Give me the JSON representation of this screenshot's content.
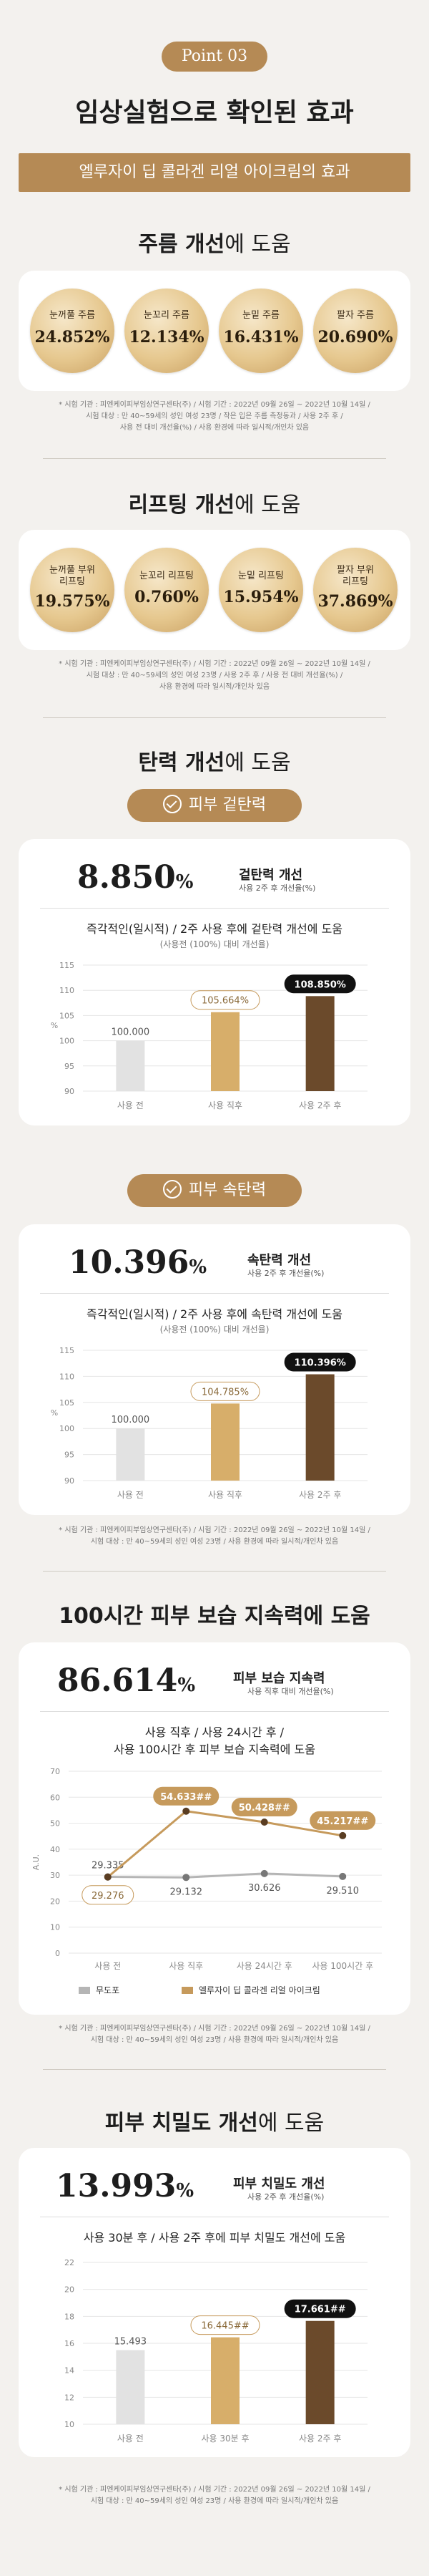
{
  "hero": {
    "point": "Point 03",
    "title": "임상실험으로 확인된 효과",
    "banner": "엘루자이 딥 콜라겐 리얼 아이크림의 효과"
  },
  "wrinkle": {
    "title_bold": "주름 개선",
    "title_rest": "에 도움",
    "items": [
      {
        "label1": "눈꺼풀 주름",
        "label2": "",
        "value": "24.852%"
      },
      {
        "label1": "눈꼬리 주름",
        "label2": "",
        "value": "12.134%"
      },
      {
        "label1": "눈밑 주름",
        "label2": "",
        "value": "16.431%"
      },
      {
        "label1": "팔자 주름",
        "label2": "",
        "value": "20.690%"
      }
    ],
    "note": [
      "* 시험 기관 : 피엔케이피부임상연구센타(주) / 시험 기간 : 2022년 09월 26일 ~ 2022년 10월 14일 /",
      "시험 대상 : 만 40~59세의 성인 여성 23명 / 작은 입은 주름 측정동과 / 사용 2주 후 /",
      "사용 전 대비 개선율(%) / 사용 환경에 따라 일시적/개인차 있음"
    ]
  },
  "lifting": {
    "title_bold": "리프팅 개선",
    "title_rest": "에 도움",
    "items": [
      {
        "label1": "눈꺼풀 부위",
        "label2": "리프팅",
        "value": "19.575%"
      },
      {
        "label1": "눈꼬리 리프팅",
        "label2": "",
        "value": "0.760%"
      },
      {
        "label1": "눈밑 리프팅",
        "label2": "",
        "value": "15.954%"
      },
      {
        "label1": "팔자 부위",
        "label2": "리프팅",
        "value": "37.869%"
      }
    ],
    "note": [
      "* 시험 기관 : 피엔케이피부임상연구센타(주) / 시험 기간 : 2022년 09월 26일 ~ 2022년 10월 14일 /",
      "시험 대상 : 만 40~59세의 성인 여성 23명 / 사용 2주 후 / 사용 전 대비 개선율(%) /",
      "사용 환경에 따라 일시적/개인차 있음"
    ]
  },
  "elasticity": {
    "title_bold": "탄력 개선",
    "title_rest": "에 도움",
    "outer": {
      "tag": "피부 겉탄력",
      "big": "8.850",
      "pct": "%",
      "label": "겉탄력 개선",
      "sub": "사용 2주 후 개선율(%)",
      "caption": "즉각적인(일시적) / 2주 사용 후에 겉탄력 개선에 도움",
      "caption2": "(사용전 (100%) 대비 개선율)"
    },
    "inner": {
      "tag": "피부 속탄력",
      "big": "10.396",
      "pct": "%",
      "label": "속탄력 개선",
      "sub": "사용 2주 후 개선율(%)",
      "caption": "즉각적인(일시적) / 2주 사용 후에 속탄력 개선에 도움",
      "caption2": "(사용전 (100%) 대비 개선율)"
    },
    "note": [
      "* 시험 기관 : 피엔케이피부임상연구센타(주) / 시험 기간 : 2022년 09월 26일 ~ 2022년 10월 14일 /",
      "시험 대상 : 만 40~59세의 성인 여성 23명 / 사용 환경에 따라 일시적/개인차 있음"
    ]
  },
  "moisture": {
    "title": "100시간 피부 보습 지속력에 도움",
    "big": "86.614",
    "pct": "%",
    "label": "피부 보습 지속력",
    "sub": "사용 직후 대비 개선율(%)",
    "caption1": "사용 직후 / 사용 24시간 후 /",
    "caption2": "사용 100시간 후 피부 보습 지속력에 도움",
    "note": [
      "* 시험 기관 : 피엔케이피부임상연구센타(주) / 시험 기간 : 2022년 09월 26일 ~ 2022년 10월 14일 /",
      "시험 대상 : 만 40~59세의 성인 여성 23명 / 사용 환경에 따라 일시적/개인차 있음"
    ]
  },
  "density": {
    "title_bold": "피부 치밀도 개선",
    "title_rest": "에 도움",
    "big": "13.993",
    "pct": "%",
    "label": "피부 치밀도 개선",
    "sub": "사용 2주 후 개선율(%)",
    "caption": "사용 30분 후 / 사용 2주 후에 피부 치밀도 개선에 도움",
    "note": [
      "* 시험 기관 : 피엔케이피부임상연구센타(주) / 시험 기간 : 2022년 09월 26일 ~ 2022년 10월 14일 /",
      "시험 대상 : 만 40~59세의 성인 여성 23명 / 사용 환경에 따라 일시적/개인차 있음"
    ]
  },
  "chart_data": [
    {
      "id": "outer",
      "type": "bar",
      "categories": [
        "사용 전",
        "사용 직후",
        "사용 2주 후"
      ],
      "values": [
        100.0,
        105.664,
        108.85
      ],
      "labels": [
        "100.000",
        "105.664%",
        "108.850%"
      ],
      "ylabel": "%",
      "ylim": [
        90,
        115
      ],
      "yticks": [
        90,
        95,
        100,
        105,
        110,
        115
      ],
      "colors": [
        "#e2e2e2",
        "#d7ae6a",
        "#6b4a2b"
      ],
      "highlight_index": 2,
      "grid": true
    },
    {
      "id": "inner",
      "type": "bar",
      "categories": [
        "사용 전",
        "사용 직후",
        "사용 2주 후"
      ],
      "values": [
        100.0,
        104.785,
        110.396
      ],
      "labels": [
        "100.000",
        "104.785%",
        "110.396%"
      ],
      "ylabel": "%",
      "ylim": [
        90,
        115
      ],
      "yticks": [
        90,
        95,
        100,
        105,
        110,
        115
      ],
      "colors": [
        "#e2e2e2",
        "#d7ae6a",
        "#6b4a2b"
      ],
      "highlight_index": 2,
      "grid": true
    },
    {
      "id": "moisture",
      "type": "line",
      "categories": [
        "사용 전",
        "사용 직후",
        "사용 24시간 후",
        "사용 100시간 후"
      ],
      "ylabel": "A.U.",
      "ylim": [
        0,
        70
      ],
      "yticks": [
        0,
        10,
        20,
        30,
        40,
        50,
        60,
        70
      ],
      "grid": true,
      "legend": "bottom",
      "series": [
        {
          "name": "무도포",
          "values": [
            29.335,
            29.132,
            30.626,
            29.51
          ],
          "labels": [
            "29.335",
            "29.132",
            "30.626",
            "29.510"
          ],
          "color": "#b5b5b5"
        },
        {
          "name": "엘루자이 딥 콜라겐 리얼 아이크림",
          "values": [
            29.276,
            54.633,
            50.428,
            45.217
          ],
          "labels": [
            "29.276",
            "54.633##",
            "50.428##",
            "45.217##"
          ],
          "color": "#c69a5c"
        }
      ]
    },
    {
      "id": "density",
      "type": "bar",
      "categories": [
        "사용 전",
        "사용 30분 후",
        "사용 2주 후"
      ],
      "values": [
        15.493,
        16.445,
        17.661
      ],
      "labels": [
        "15.493",
        "16.445##",
        "17.661##"
      ],
      "ylim": [
        10,
        22
      ],
      "yticks": [
        10,
        12,
        14,
        16,
        18,
        20,
        22
      ],
      "colors": [
        "#e2e2e2",
        "#d7ae6a",
        "#6b4a2b"
      ],
      "highlight_index": 2,
      "grid": true
    }
  ]
}
